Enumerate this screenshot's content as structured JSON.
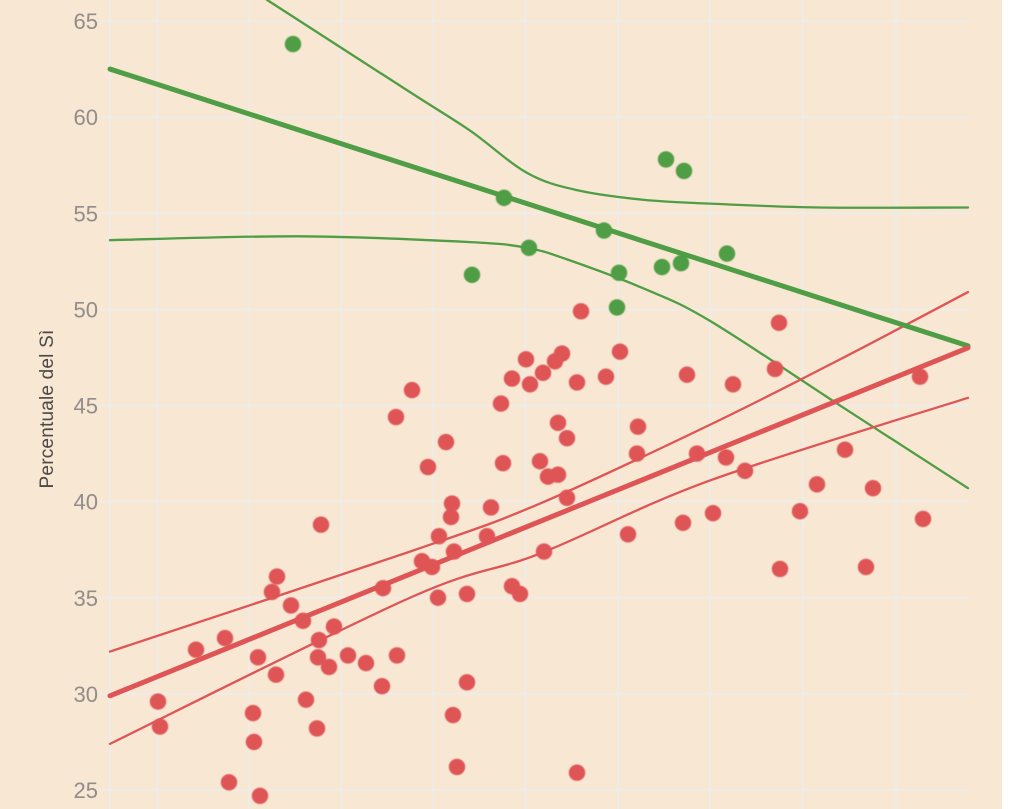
{
  "chart_data": {
    "type": "scatter",
    "title": "",
    "xlabel": "",
    "ylabel": "Percentuale del Sì",
    "y_axis": {
      "ticks": [
        65,
        60,
        55,
        50,
        45,
        40,
        35,
        30,
        25
      ]
    },
    "ylim": [
      24.5,
      66.2
    ],
    "grid": true,
    "legend_position": "none-visible (cropped)",
    "colors": {
      "background": "#f7e7d3",
      "gridline": "#f1ebe4",
      "red_series": "#df5556",
      "green_series": "#4f9d44",
      "tick_label": "#918d8a",
      "axis_title": "#4c4947"
    },
    "note_x_axis": "x tick labels cropped out of view; x stored as pixel position 110-970",
    "series": [
      {
        "name": "green",
        "color": "#4f9d44",
        "marker_radius": 8.2,
        "points": [
          [
            293,
            63.8
          ],
          [
            504,
            55.8
          ],
          [
            529,
            53.2
          ],
          [
            472,
            51.8
          ],
          [
            604,
            54.1
          ],
          [
            619,
            51.9
          ],
          [
            617,
            50.1
          ],
          [
            662,
            52.2
          ],
          [
            681,
            52.4
          ],
          [
            666,
            57.8
          ],
          [
            684,
            57.2
          ],
          [
            727,
            52.9
          ]
        ]
      },
      {
        "name": "red",
        "color": "#df5556",
        "marker_radius": 8.2,
        "points": [
          [
            412,
            45.8
          ],
          [
            396,
            44.4
          ],
          [
            446,
            43.1
          ],
          [
            428,
            41.8
          ],
          [
            501,
            45.1
          ],
          [
            503,
            42.0
          ],
          [
            452,
            39.9
          ],
          [
            451,
            39.2
          ],
          [
            321,
            38.8
          ],
          [
            439,
            38.2
          ],
          [
            454,
            37.4
          ],
          [
            487,
            38.2
          ],
          [
            422,
            36.9
          ],
          [
            432,
            36.6
          ],
          [
            544,
            37.4
          ],
          [
            628,
            38.3
          ],
          [
            683,
            38.9
          ],
          [
            438,
            35.0
          ],
          [
            467,
            35.2
          ],
          [
            512,
            35.6
          ],
          [
            520,
            35.2
          ],
          [
            467,
            30.6
          ],
          [
            453,
            28.9
          ],
          [
            457,
            26.2
          ],
          [
            577,
            25.9
          ],
          [
            581,
            49.9
          ],
          [
            526,
            47.4
          ],
          [
            555,
            47.3
          ],
          [
            562,
            47.7
          ],
          [
            543,
            46.7
          ],
          [
            512,
            46.4
          ],
          [
            530,
            46.1
          ],
          [
            577,
            46.2
          ],
          [
            606,
            46.5
          ],
          [
            687,
            46.6
          ],
          [
            620,
            47.8
          ],
          [
            638,
            43.9
          ],
          [
            637,
            42.5
          ],
          [
            697,
            42.5
          ],
          [
            540,
            42.1
          ],
          [
            548,
            41.3
          ],
          [
            558,
            41.4
          ],
          [
            567,
            40.2
          ],
          [
            491,
            39.7
          ],
          [
            558,
            44.1
          ],
          [
            567,
            43.3
          ],
          [
            779,
            49.3
          ],
          [
            775,
            46.9
          ],
          [
            733,
            46.1
          ],
          [
            920,
            46.5
          ],
          [
            845,
            42.7
          ],
          [
            726,
            42.3
          ],
          [
            745,
            41.6
          ],
          [
            817,
            40.9
          ],
          [
            873,
            40.7
          ],
          [
            800,
            39.5
          ],
          [
            713,
            39.4
          ],
          [
            923,
            39.1
          ],
          [
            780,
            36.5
          ],
          [
            866,
            36.6
          ],
          [
            277,
            36.1
          ],
          [
            272,
            35.3
          ],
          [
            291,
            34.6
          ],
          [
            303,
            33.8
          ],
          [
            225,
            32.9
          ],
          [
            196,
            32.3
          ],
          [
            258,
            31.9
          ],
          [
            334,
            33.5
          ],
          [
            319,
            32.8
          ],
          [
            318,
            31.9
          ],
          [
            329,
            31.4
          ],
          [
            276,
            31.0
          ],
          [
            348,
            32.0
          ],
          [
            366,
            31.6
          ],
          [
            397,
            32.0
          ],
          [
            382,
            30.4
          ],
          [
            383,
            35.5
          ],
          [
            158,
            29.6
          ],
          [
            160,
            28.3
          ],
          [
            253,
            29.0
          ],
          [
            254,
            27.5
          ],
          [
            306,
            29.7
          ],
          [
            317,
            28.2
          ],
          [
            229,
            25.4
          ],
          [
            260,
            24.7
          ]
        ]
      }
    ],
    "trend_lines": [
      {
        "name": "green-ci-upper",
        "color": "#4f9d44",
        "width": 2.3,
        "anchors": [
          [
            267,
            66.1
          ],
          [
            410,
            61.3
          ],
          [
            470,
            59.3
          ],
          [
            527,
            57.1
          ],
          [
            577,
            56.2
          ],
          [
            643,
            55.7
          ],
          [
            710,
            55.5
          ],
          [
            820,
            55.3
          ],
          [
            968,
            55.3
          ]
        ]
      },
      {
        "name": "green-ci-lower",
        "color": "#4f9d44",
        "width": 2.3,
        "anchors": [
          [
            110,
            53.6
          ],
          [
            300,
            53.8
          ],
          [
            470,
            53.5
          ],
          [
            527,
            53.2
          ],
          [
            567,
            52.6
          ],
          [
            643,
            51.1
          ],
          [
            710,
            49.4
          ],
          [
            843,
            44.9
          ],
          [
            968,
            40.7
          ]
        ]
      },
      {
        "name": "red-ci-upper",
        "color": "#df5556",
        "width": 2.3,
        "anchors": [
          [
            110,
            32.2
          ],
          [
            410,
            37.4
          ],
          [
            540,
            39.9
          ],
          [
            710,
            44.0
          ],
          [
            840,
            47.4
          ],
          [
            968,
            50.9
          ]
        ]
      },
      {
        "name": "red-ci-lower",
        "color": "#df5556",
        "width": 2.3,
        "anchors": [
          [
            110,
            27.4
          ],
          [
            410,
            35.0
          ],
          [
            540,
            37.3
          ],
          [
            710,
            41.1
          ],
          [
            968,
            45.4
          ]
        ]
      },
      {
        "name": "green-trend",
        "color": "#4f9d44",
        "width": 5,
        "anchors": [
          [
            110,
            62.5
          ],
          [
            968,
            48.1
          ]
        ]
      },
      {
        "name": "red-trend",
        "color": "#df5556",
        "width": 5,
        "anchors": [
          [
            110,
            29.9
          ],
          [
            968,
            48.0
          ]
        ]
      }
    ]
  }
}
